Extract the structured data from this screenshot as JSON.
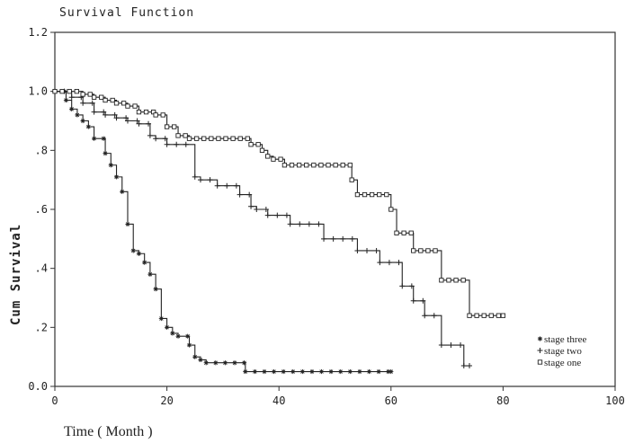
{
  "chart_data": {
    "type": "line",
    "step": true,
    "title": "Survival Function",
    "xlabel": "Time ( Month )",
    "ylabel": "Cum Survival",
    "xlim": [
      0,
      100
    ],
    "ylim": [
      0,
      1.2
    ],
    "xticks": [
      {
        "value": 0,
        "label": "0"
      },
      {
        "value": 20,
        "label": "20"
      },
      {
        "value": 40,
        "label": "40"
      },
      {
        "value": 60,
        "label": "60"
      },
      {
        "value": 80,
        "label": "80"
      },
      {
        "value": 100,
        "label": "100"
      }
    ],
    "yticks": [
      {
        "value": 0,
        "label": "0.0"
      },
      {
        "value": 0.2,
        "label": ".2"
      },
      {
        "value": 0.4,
        "label": ".4"
      },
      {
        "value": 0.6,
        "label": ".6"
      },
      {
        "value": 0.8,
        "label": ".8"
      },
      {
        "value": 1.0,
        "label": "1.0"
      },
      {
        "value": 1.2,
        "label": "1.2"
      }
    ],
    "grid": false,
    "legend_position": "bottom-right",
    "series": [
      {
        "name": "stage three",
        "marker": "*",
        "x": [
          0,
          2,
          3,
          4,
          5,
          6,
          7,
          9,
          10,
          11,
          12,
          13,
          14,
          15,
          16,
          17,
          18,
          19,
          20,
          21,
          22,
          24,
          25,
          26,
          27,
          34,
          60
        ],
        "y": [
          1.0,
          0.97,
          0.94,
          0.92,
          0.9,
          0.88,
          0.84,
          0.79,
          0.75,
          0.71,
          0.66,
          0.55,
          0.46,
          0.45,
          0.42,
          0.38,
          0.33,
          0.23,
          0.2,
          0.18,
          0.17,
          0.14,
          0.1,
          0.09,
          0.08,
          0.05,
          0.05
        ]
      },
      {
        "name": "stage two",
        "marker": "+",
        "x": [
          0,
          3,
          5,
          7,
          9,
          11,
          13,
          15,
          17,
          18,
          20,
          25,
          26,
          29,
          33,
          35,
          36,
          38,
          42,
          48,
          54,
          58,
          62,
          64,
          66,
          69,
          73,
          74
        ],
        "y": [
          1.0,
          0.98,
          0.96,
          0.93,
          0.92,
          0.91,
          0.9,
          0.89,
          0.85,
          0.84,
          0.82,
          0.71,
          0.7,
          0.68,
          0.65,
          0.61,
          0.6,
          0.58,
          0.55,
          0.5,
          0.46,
          0.42,
          0.34,
          0.29,
          0.24,
          0.14,
          0.07,
          0.07
        ]
      },
      {
        "name": "stage one",
        "marker": "square",
        "x": [
          0,
          5,
          7,
          9,
          11,
          13,
          15,
          18,
          20,
          22,
          24,
          35,
          37,
          38,
          39,
          41,
          53,
          54,
          60,
          61,
          64,
          69,
          74,
          80
        ],
        "y": [
          1.0,
          0.99,
          0.98,
          0.97,
          0.96,
          0.95,
          0.93,
          0.92,
          0.88,
          0.85,
          0.84,
          0.82,
          0.8,
          0.78,
          0.77,
          0.75,
          0.7,
          0.65,
          0.6,
          0.52,
          0.46,
          0.36,
          0.24,
          0.24
        ]
      }
    ]
  }
}
